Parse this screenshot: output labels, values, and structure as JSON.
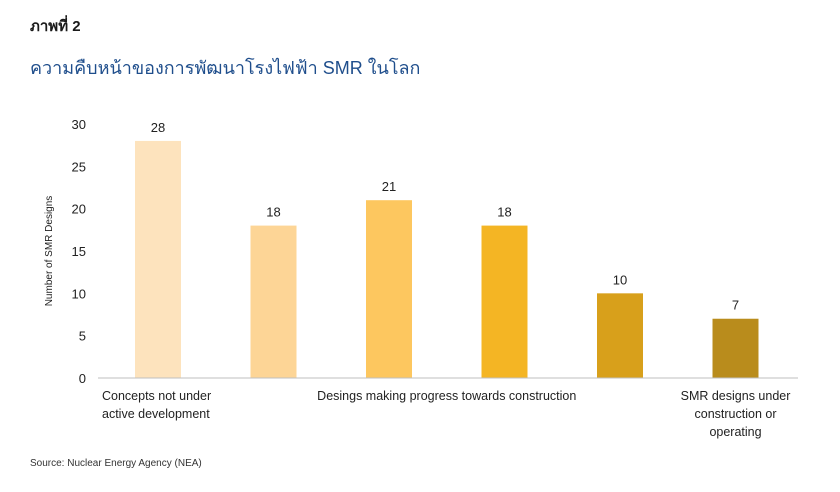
{
  "figure_label": "ภาพที่ 2",
  "figure_title": "ความคืบหน้าของการพัฒนาโรงไฟฟ้า SMR ในโลก",
  "source": "Source: Nuclear Energy Agency (NEA)",
  "chart_data": {
    "type": "bar",
    "title": "",
    "xlabel": "",
    "ylabel": "Number of SMR Designs",
    "ylim": [
      0,
      30
    ],
    "yticks": [
      0,
      5,
      10,
      15,
      20,
      25,
      30
    ],
    "grid": false,
    "legend": "none",
    "values": [
      28,
      18,
      21,
      18,
      10,
      7
    ],
    "colors": [
      "#fde3bd",
      "#fdd596",
      "#fdc75f",
      "#f4b524",
      "#d8a01b",
      "#b98c1c"
    ],
    "group_labels": [
      {
        "text": [
          "Concepts not under",
          "active development"
        ],
        "bars": [
          0,
          0
        ],
        "align": "start"
      },
      {
        "text": [
          "Desings making progress towards construction"
        ],
        "bars": [
          1,
          4
        ],
        "align": "middle"
      },
      {
        "text": [
          "SMR designs under",
          "construction or",
          "operating"
        ],
        "bars": [
          5,
          5
        ],
        "align": "middle"
      }
    ]
  }
}
